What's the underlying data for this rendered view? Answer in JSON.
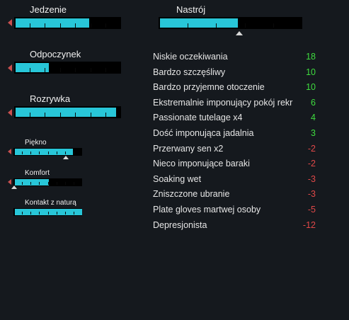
{
  "needs": {
    "food": {
      "label": "Jedzenie",
      "level": 0.69
    },
    "rest": {
      "label": "Odpoczynek",
      "level": 0.31
    },
    "joy": {
      "label": "Rozrywka",
      "level": 0.94
    },
    "beauty": {
      "label": "Piękno",
      "level": 0.85
    },
    "comfort": {
      "label": "Komfort",
      "level": 0.49
    },
    "outdoors": {
      "label": "Kontakt z naturą",
      "level": 1.0
    }
  },
  "mood": {
    "label": "Nastrój",
    "level": 0.54
  },
  "thoughts": [
    {
      "label": "Niskie oczekiwania",
      "value": "18"
    },
    {
      "label": "Bardzo szczęśliwy",
      "value": "10"
    },
    {
      "label": "Bardzo przyjemne otoczenie",
      "value": "10"
    },
    {
      "label": "Ekstremalnie imponujący pokój rekr",
      "value": "6"
    },
    {
      "label": "Passionate tutelage x4",
      "value": "4"
    },
    {
      "label": "Dość imponująca jadalnia",
      "value": "3"
    },
    {
      "label": "Przerwany sen x2",
      "value": "-2"
    },
    {
      "label": "Nieco imponujące baraki",
      "value": "-2"
    },
    {
      "label": "Soaking wet",
      "value": "-3"
    },
    {
      "label": "Zniszczone ubranie",
      "value": "-3"
    },
    {
      "label": "Plate gloves martwej osoby",
      "value": "-5"
    },
    {
      "label": "Depresjonista",
      "value": "-12"
    }
  ],
  "colors": {
    "bar_fill": "#28c6d8",
    "bar_bg": "#000000",
    "positive": "#3fdc3f",
    "negative": "#e04848"
  }
}
